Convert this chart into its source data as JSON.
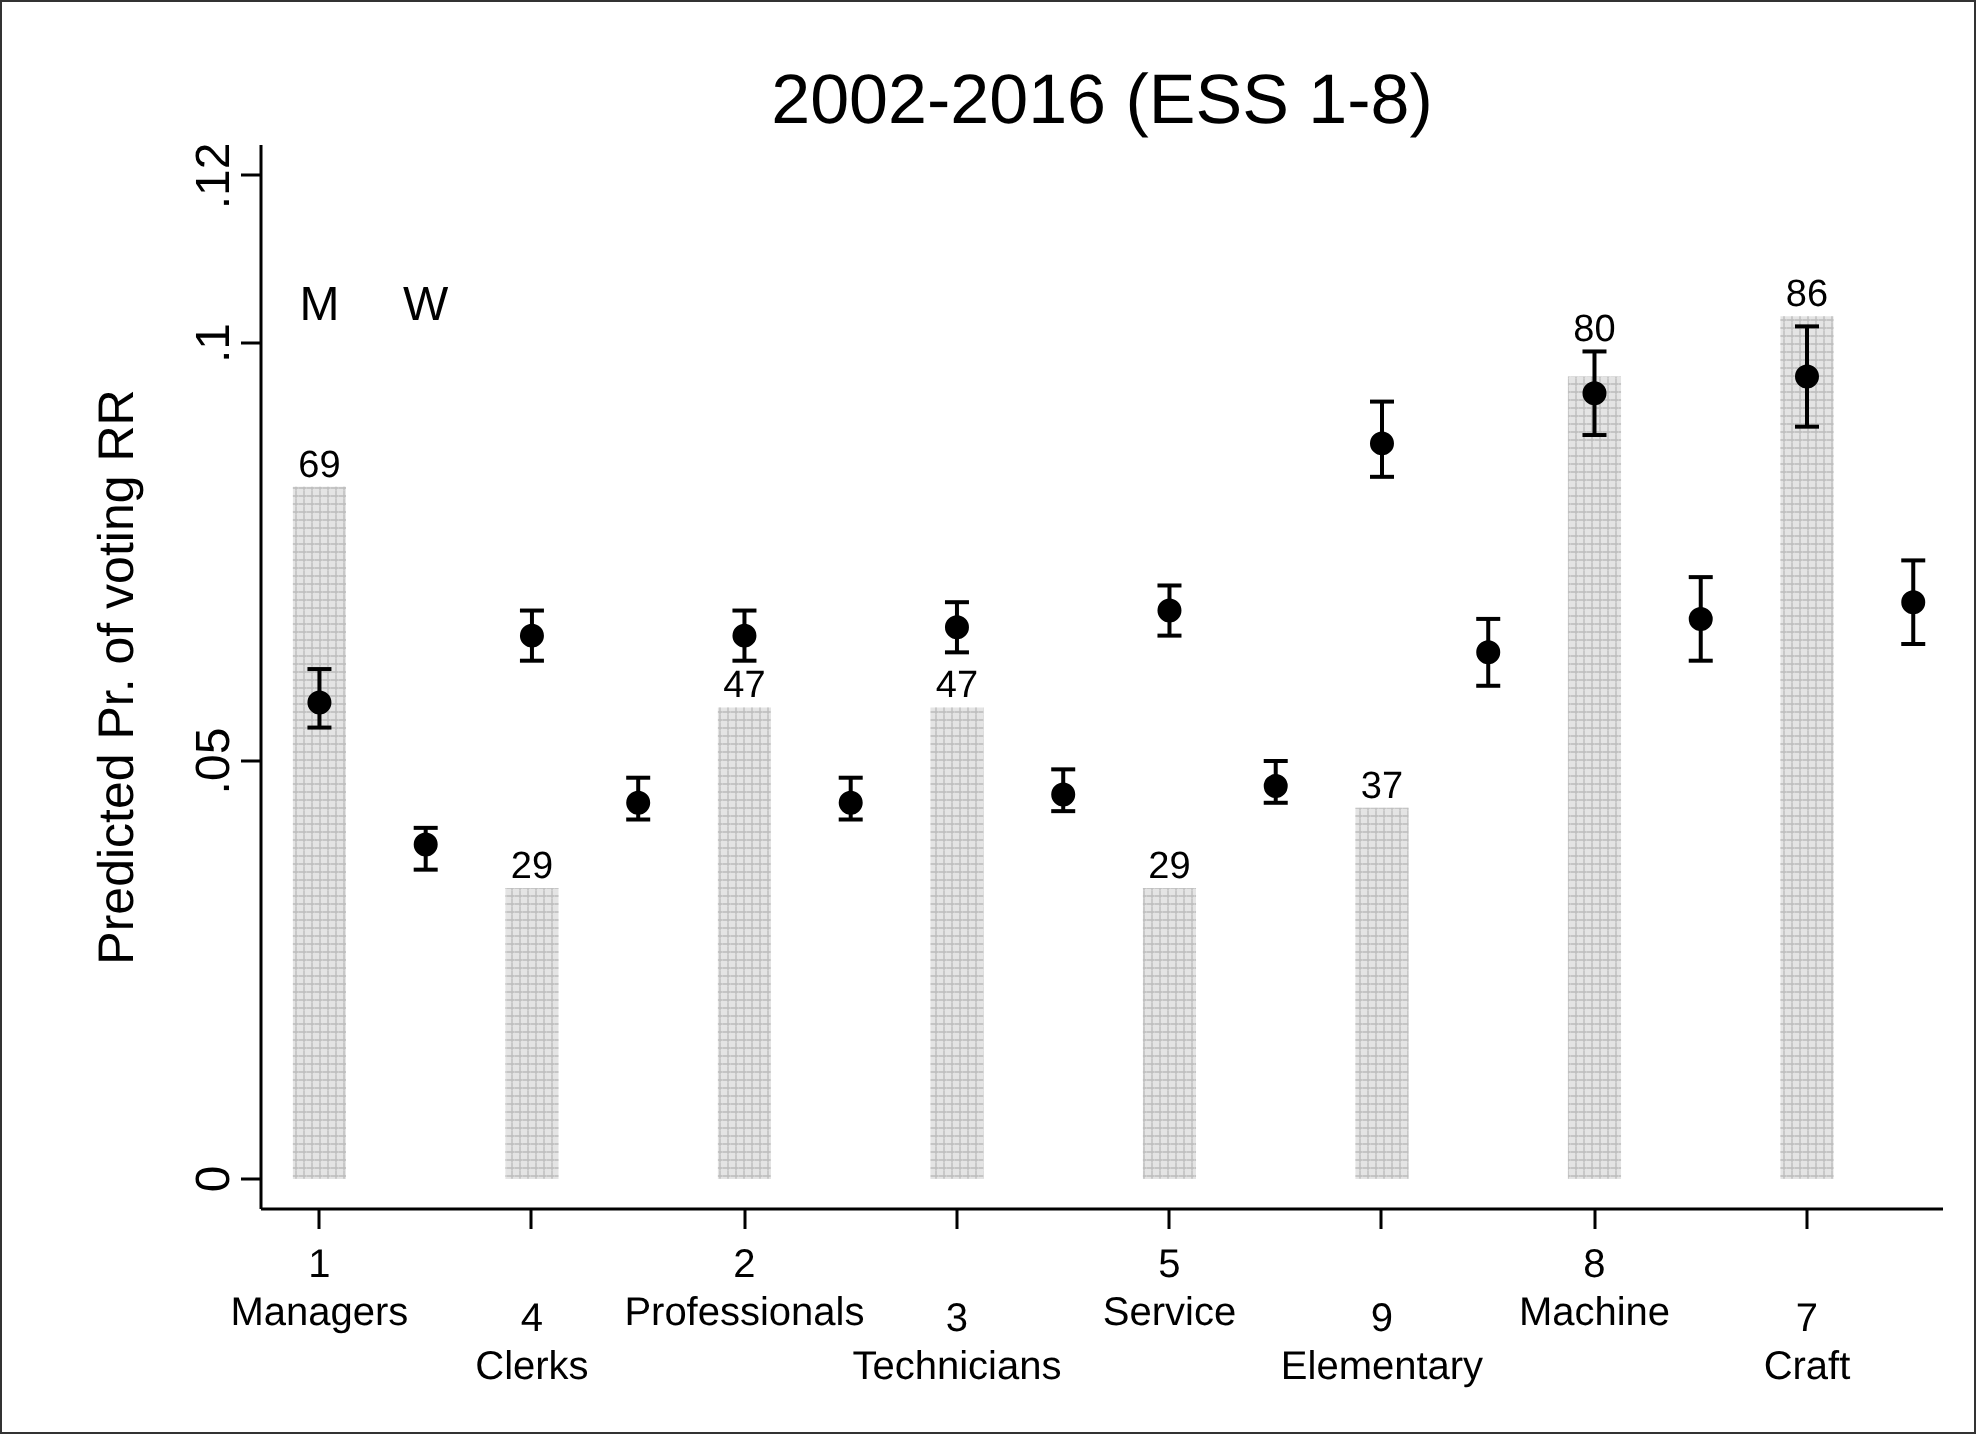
{
  "chart_data": {
    "type": "scatter",
    "title": "2002-2016 (ESS 1-8)",
    "ylabel": "Predicted Pr. of voting RR",
    "annotations": [
      "M",
      "W"
    ],
    "categories": [
      "1\nManagers",
      null,
      "4\nClerks",
      null,
      "2\nProfessionals",
      null,
      "3\nTechnicians",
      null,
      "5\nService",
      null,
      "9\nElementary",
      null,
      "8\nMachine",
      null,
      "7\nCraft",
      null
    ],
    "ylim": [
      -0.0036,
      0.1237
    ],
    "yticks": [
      {
        "value": 0,
        "label": "0"
      },
      {
        "value": 0.05,
        "label": ".05"
      },
      {
        "value": 0.1,
        "label": ".1"
      },
      {
        "value": 0.12,
        "label": ".12"
      }
    ],
    "y2lim": [
      -3,
      103.08
    ],
    "marker": "circle",
    "series": [
      {
        "type": "bar",
        "axis": "y2",
        "color": "#e4e4e4",
        "values": [
          69,
          null,
          29,
          null,
          47,
          null,
          47,
          null,
          29,
          null,
          37,
          null,
          80,
          null,
          86,
          null
        ],
        "value_labels": [
          "69",
          null,
          "29",
          null,
          "47",
          null,
          "47",
          null,
          "29",
          null,
          "37",
          null,
          "80",
          null,
          "86",
          null
        ]
      },
      {
        "color": "#000000",
        "values": [
          0.057,
          null,
          0.065,
          null,
          0.065,
          null,
          0.066,
          null,
          0.068,
          null,
          0.088,
          null,
          0.094,
          null,
          0.096,
          null
        ],
        "errors": [
          [
            0.054,
            0.061
          ],
          null,
          [
            0.062,
            0.068
          ],
          null,
          [
            0.062,
            0.068
          ],
          null,
          [
            0.063,
            0.069
          ],
          null,
          [
            0.065,
            0.071
          ],
          null,
          [
            0.084,
            0.093
          ],
          null,
          [
            0.089,
            0.099
          ],
          null,
          [
            0.09,
            0.102
          ],
          null
        ]
      },
      {
        "color": "#000000",
        "values": [
          null,
          0.04,
          null,
          0.045,
          null,
          0.045,
          null,
          0.046,
          null,
          0.047,
          null,
          0.063,
          null,
          0.067,
          null,
          0.069
        ],
        "errors": [
          null,
          [
            0.037,
            0.042
          ],
          null,
          [
            0.043,
            0.048
          ],
          null,
          [
            0.043,
            0.048
          ],
          null,
          [
            0.044,
            0.049
          ],
          null,
          [
            0.045,
            0.05
          ],
          null,
          [
            0.059,
            0.067
          ],
          null,
          [
            0.062,
            0.072
          ],
          null,
          [
            0.064,
            0.074
          ]
        ]
      }
    ]
  }
}
